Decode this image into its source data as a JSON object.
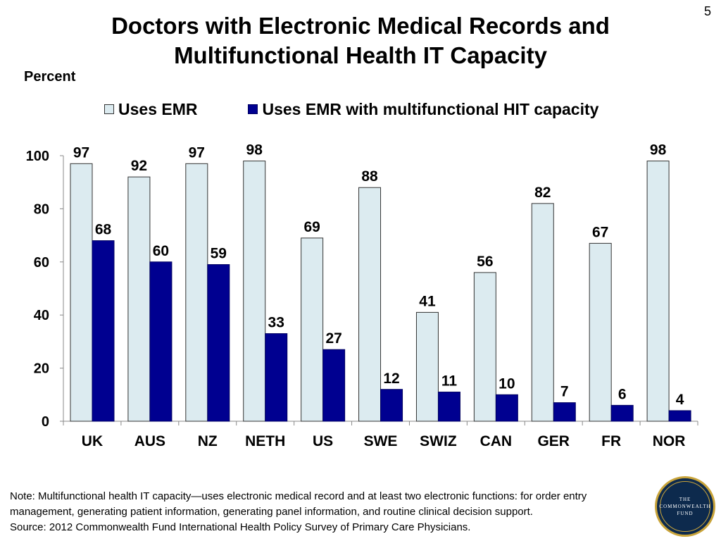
{
  "page_number": "5",
  "title_line1": "Doctors with Electronic Medical Records and",
  "title_line2": "Multifunctional Health IT Capacity",
  "note": "Note: Multifunctional health IT capacity—uses electronic medical record and at least two electronic functions: for order entry management, generating patient information, generating panel information, and routine clinical decision support.",
  "source": "Source: 2012 Commonwealth Fund International Health Policy Survey of Primary Care Physicians.",
  "logo": {
    "line1": "THE",
    "line2": "COMMONWEALTH",
    "line3": "FUND"
  },
  "chart_data": {
    "type": "bar",
    "title": "Doctors with Electronic Medical Records and Multifunctional Health IT Capacity",
    "ylabel": "Percent",
    "xlabel": "",
    "ylim": [
      0,
      100
    ],
    "yticks": [
      0,
      20,
      40,
      60,
      80,
      100
    ],
    "grid": false,
    "legend_position": "top",
    "categories": [
      "UK",
      "AUS",
      "NZ",
      "NETH",
      "US",
      "SWE",
      "SWIZ",
      "CAN",
      "GER",
      "FR",
      "NOR"
    ],
    "series": [
      {
        "name": "Uses EMR",
        "color": "#DCEBF0",
        "values": [
          97,
          92,
          97,
          98,
          69,
          88,
          41,
          56,
          82,
          67,
          98
        ]
      },
      {
        "name": "Uses EMR with multifunctional HIT capacity",
        "color": "#000090",
        "values": [
          68,
          60,
          59,
          33,
          27,
          12,
          11,
          10,
          7,
          6,
          4
        ]
      }
    ]
  }
}
